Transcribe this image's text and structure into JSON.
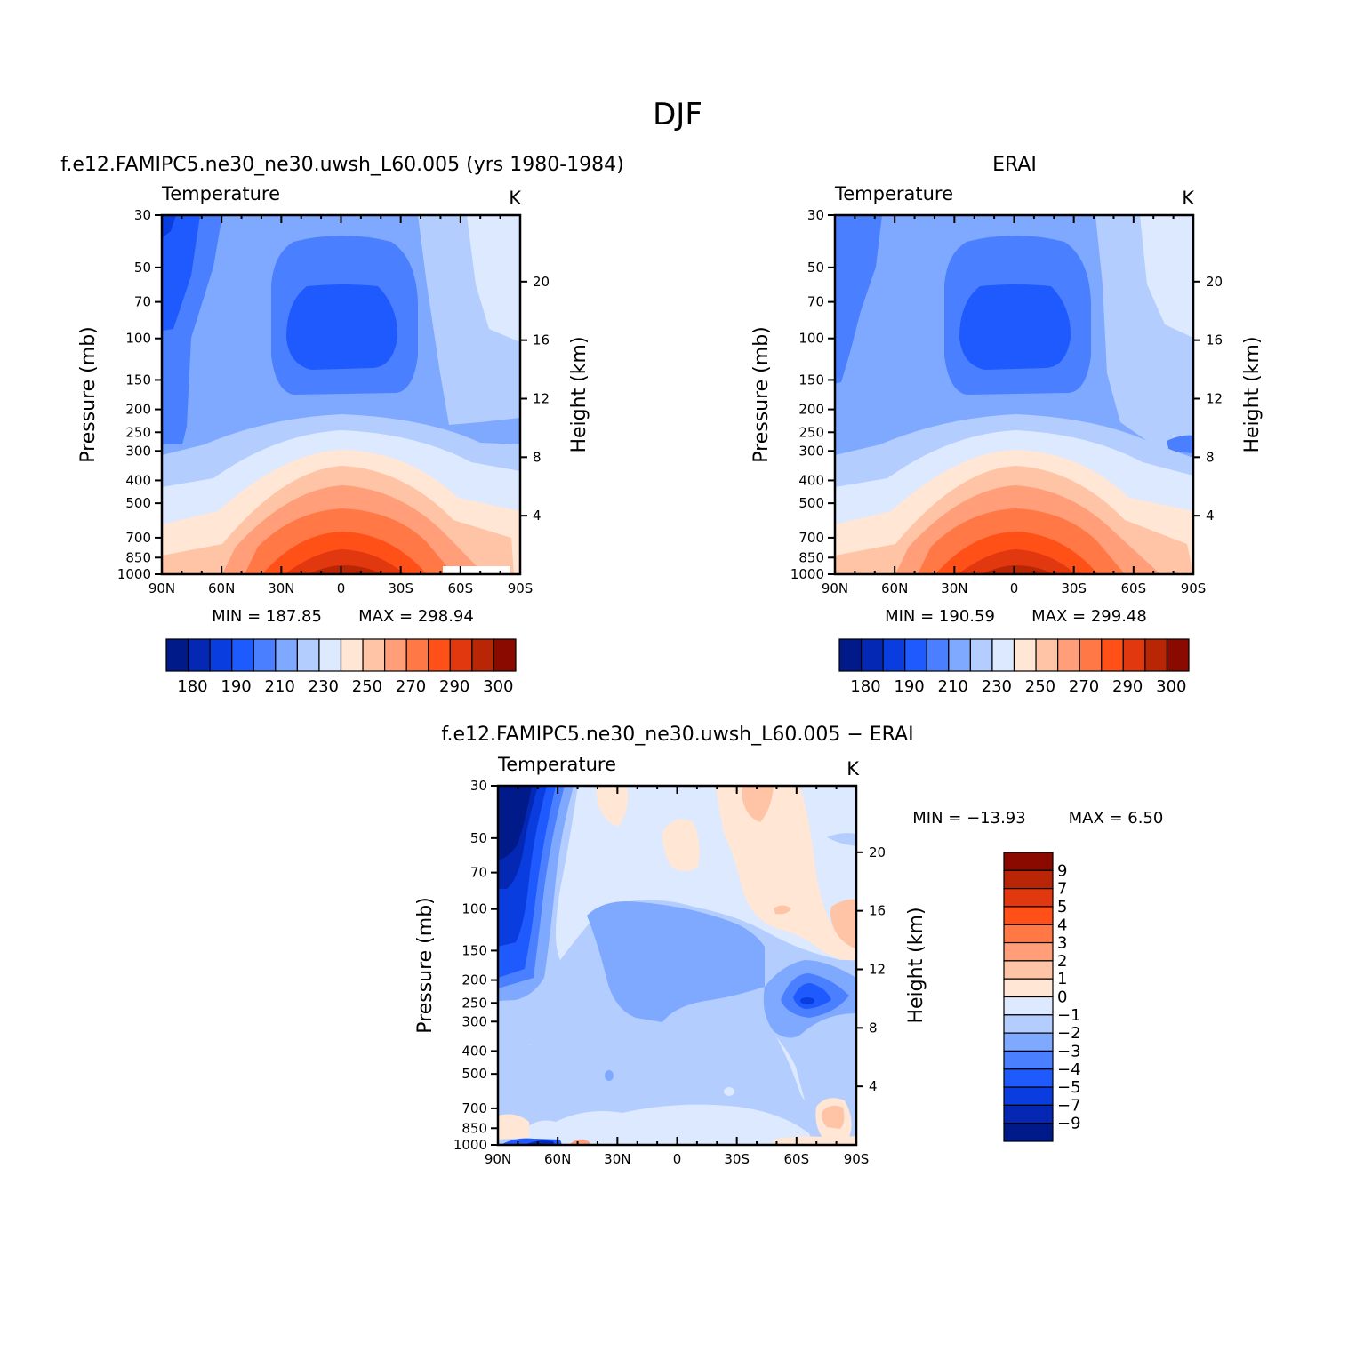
{
  "figure": {
    "title": "DJF"
  },
  "colors": {
    "abs_palette": [
      "#001a8a",
      "#0528b4",
      "#0a3de0",
      "#1f5aff",
      "#4a80ff",
      "#7fa8ff",
      "#b4cdff",
      "#dde9ff",
      "#ffe6d5",
      "#ffc4a6",
      "#ff9e78",
      "#ff7846",
      "#ff5018",
      "#e23810",
      "#b82606",
      "#8a0a00"
    ],
    "diff_palette": [
      "#001a8a",
      "#0528b4",
      "#0a3de0",
      "#1f5aff",
      "#4a80ff",
      "#7fa8ff",
      "#b4cdff",
      "#dde9ff",
      "#ffe6d5",
      "#ffc4a6",
      "#ff9e78",
      "#ff7846",
      "#ff5018",
      "#e23810",
      "#b82606",
      "#8a0a00"
    ]
  },
  "chart_data": [
    {
      "type": "contour",
      "panel_title": "f.e12.FAMIPC5.ne30_ne30.uwsh_L60.005 (yrs 1980-1984)",
      "variable": "Temperature",
      "units": "K",
      "ylabel": "Pressure (mb)",
      "y2label": "Height (km)",
      "x_ticks": [
        "90N",
        "60N",
        "30N",
        "0",
        "30S",
        "60S",
        "90S"
      ],
      "y_ticks": [
        "30",
        "50",
        "70",
        "100",
        "150",
        "200",
        "250",
        "300",
        "400",
        "500",
        "700",
        "850",
        "1000"
      ],
      "y2_ticks": [
        "20",
        "16",
        "12",
        "8",
        "4"
      ],
      "min_label": "MIN = 187.85",
      "max_label": "MAX = 298.94",
      "min": 187.85,
      "max": 298.94,
      "colorbar_labels": [
        "180",
        "190",
        "210",
        "230",
        "250",
        "270",
        "290",
        "300"
      ]
    },
    {
      "type": "contour",
      "panel_title": "ERAI",
      "variable": "Temperature",
      "units": "K",
      "ylabel": "Pressure (mb)",
      "y2label": "Height (km)",
      "x_ticks": [
        "90N",
        "60N",
        "30N",
        "0",
        "30S",
        "60S",
        "90S"
      ],
      "y_ticks": [
        "30",
        "50",
        "70",
        "100",
        "150",
        "200",
        "250",
        "300",
        "400",
        "500",
        "700",
        "850",
        "1000"
      ],
      "y2_ticks": [
        "20",
        "16",
        "12",
        "8",
        "4"
      ],
      "min_label": "MIN = 190.59",
      "max_label": "MAX = 299.48",
      "min": 190.59,
      "max": 299.48,
      "colorbar_labels": [
        "180",
        "190",
        "210",
        "230",
        "250",
        "270",
        "290",
        "300"
      ]
    },
    {
      "type": "contour",
      "panel_title": "f.e12.FAMIPC5.ne30_ne30.uwsh_L60.005 − ERAI",
      "variable": "Temperature",
      "units": "K",
      "ylabel": "Pressure (mb)",
      "y2label": "Height (km)",
      "x_ticks": [
        "90N",
        "60N",
        "30N",
        "0",
        "30S",
        "60S",
        "90S"
      ],
      "y_ticks": [
        "30",
        "50",
        "70",
        "100",
        "150",
        "200",
        "250",
        "300",
        "400",
        "500",
        "700",
        "850",
        "1000"
      ],
      "y2_ticks": [
        "20",
        "16",
        "12",
        "8",
        "4"
      ],
      "min_label": "MIN = −13.93",
      "max_label": "MAX =    6.50",
      "min": -13.93,
      "max": 6.5,
      "colorbar_labels": [
        "9",
        "7",
        "5",
        "4",
        "3",
        "2",
        "1",
        "0",
        "−1",
        "−2",
        "−3",
        "−4",
        "−5",
        "−7",
        "−9"
      ]
    }
  ]
}
